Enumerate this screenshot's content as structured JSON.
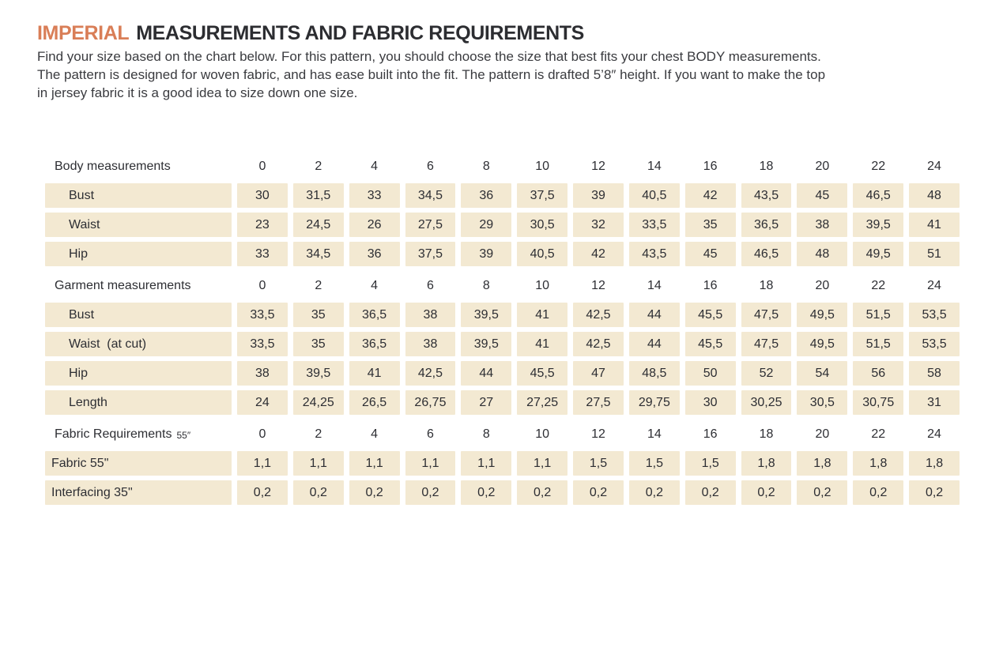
{
  "colors": {
    "accent_orange": "#d97e57",
    "cell_beige": "#f3e9d2",
    "text_dark": "#2d2e33"
  },
  "header": {
    "title_accent": "IMPERIAL",
    "title_rest": "MEASUREMENTS AND FABRIC REQUIREMENTS"
  },
  "intro": {
    "lines": [
      "Find your size based on the chart below. For this pattern, you should choose the size that best fits your chest BODY measurements.",
      "The pattern is designed for woven fabric, and has ease built into the fit. The pattern is drafted 5’8″ height. If you want to make the top",
      "in jersey fabric it is a good idea to size down one size."
    ]
  },
  "table": {
    "sizes": [
      "0",
      "2",
      "4",
      "6",
      "8",
      "10",
      "12",
      "14",
      "16",
      "18",
      "20",
      "22",
      "24"
    ],
    "sections": [
      {
        "header": "Body measurements",
        "header_small": "",
        "compact": false,
        "rows": [
          {
            "label": "Bust",
            "values": [
              "30",
              "31,5",
              "33",
              "34,5",
              "36",
              "37,5",
              "39",
              "40,5",
              "42",
              "43,5",
              "45",
              "46,5",
              "48"
            ]
          },
          {
            "label": "Waist",
            "values": [
              "23",
              "24,5",
              "26",
              "27,5",
              "29",
              "30,5",
              "32",
              "33,5",
              "35",
              "36,5",
              "38",
              "39,5",
              "41"
            ]
          },
          {
            "label": "Hip",
            "values": [
              "33",
              "34,5",
              "36",
              "37,5",
              "39",
              "40,5",
              "42",
              "43,5",
              "45",
              "46,5",
              "48",
              "49,5",
              "51"
            ]
          }
        ]
      },
      {
        "header": "Garment measurements",
        "header_small": "",
        "compact": false,
        "rows": [
          {
            "label": "Bust",
            "values": [
              "33,5",
              "35",
              "36,5",
              "38",
              "39,5",
              "41",
              "42,5",
              "44",
              "45,5",
              "47,5",
              "49,5",
              "51,5",
              "53,5"
            ]
          },
          {
            "label": "Waist  (at cut)",
            "values": [
              "33,5",
              "35",
              "36,5",
              "38",
              "39,5",
              "41",
              "42,5",
              "44",
              "45,5",
              "47,5",
              "49,5",
              "51,5",
              "53,5"
            ]
          },
          {
            "label": "Hip",
            "values": [
              "38",
              "39,5",
              "41",
              "42,5",
              "44",
              "45,5",
              "47",
              "48,5",
              "50",
              "52",
              "54",
              "56",
              "58"
            ]
          },
          {
            "label": "Length",
            "values": [
              "24",
              "24,25",
              "26,5",
              "26,75",
              "27",
              "27,25",
              "27,5",
              "29,75",
              "30",
              "30,25",
              "30,5",
              "30,75",
              "31"
            ]
          }
        ]
      },
      {
        "header": "Fabric Requirements",
        "header_small": "55″",
        "compact": true,
        "rows": [
          {
            "label": "Fabric 55\"",
            "values": [
              "1,1",
              "1,1",
              "1,1",
              "1,1",
              "1,1",
              "1,1",
              "1,5",
              "1,5",
              "1,5",
              "1,8",
              "1,8",
              "1,8",
              "1,8"
            ]
          },
          {
            "label": "Interfacing 35\"",
            "values": [
              "0,2",
              "0,2",
              "0,2",
              "0,2",
              "0,2",
              "0,2",
              "0,2",
              "0,2",
              "0,2",
              "0,2",
              "0,2",
              "0,2",
              "0,2"
            ]
          }
        ]
      }
    ]
  }
}
